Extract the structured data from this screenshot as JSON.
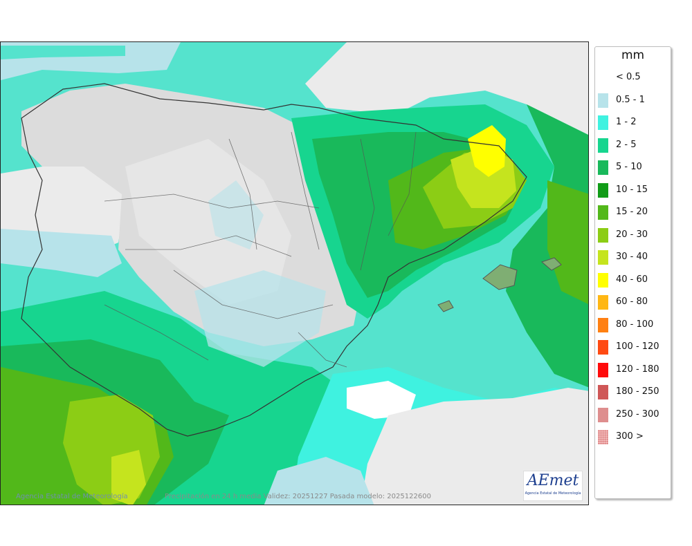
{
  "legend": {
    "unit": "mm",
    "items": [
      {
        "label": "< 0.5",
        "color": "#ffffff"
      },
      {
        "label": "0.5 - 1",
        "color": "#b7e3ea"
      },
      {
        "label": "1 - 2",
        "color": "#3ff2e0"
      },
      {
        "label": "2 - 5",
        "color": "#17d58f"
      },
      {
        "label": "5 - 10",
        "color": "#19b95b"
      },
      {
        "label": "10 - 15",
        "color": "#119c17"
      },
      {
        "label": "15 - 20",
        "color": "#52b81a"
      },
      {
        "label": "20 - 30",
        "color": "#8ccd15"
      },
      {
        "label": "30 - 40",
        "color": "#c5e41e"
      },
      {
        "label": "40 - 60",
        "color": "#ffff00"
      },
      {
        "label": "60 - 80",
        "color": "#ffb714"
      },
      {
        "label": "80 - 100",
        "color": "#ff8012"
      },
      {
        "label": "100 - 120",
        "color": "#ff4a12"
      },
      {
        "label": "120 - 180",
        "color": "#ff0b0b"
      },
      {
        "label": "180 - 250",
        "color": "#cf5757"
      },
      {
        "label": "250 - 300",
        "color": "#de8e8e"
      },
      {
        "label": "300 >",
        "color": "#f4bfbf",
        "pattern": "dotted"
      }
    ]
  },
  "map": {
    "credit": "Agencia Estatal de Meteorología",
    "caption": "Precipitación en 24 h media  Validez: 20251227 Pasada modelo: 2025122600"
  },
  "logo": {
    "wordmark": "AEmet",
    "subtitle": "Agencia Estatal de Meteorología"
  }
}
